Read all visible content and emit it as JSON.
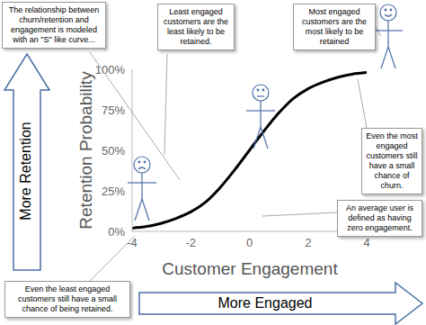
{
  "chart_data": {
    "type": "line",
    "x_label": "Customer Engagement",
    "y_label": "Retention Probability",
    "x": [
      -4,
      -3.5,
      -3,
      -2.5,
      -2,
      -1.5,
      -1,
      -0.5,
      0,
      0.5,
      1,
      1.5,
      2,
      2.5,
      3,
      3.5,
      4
    ],
    "values": [
      2,
      3,
      5,
      8,
      12,
      18,
      27,
      38,
      50,
      62,
      73,
      82,
      88,
      92,
      95,
      97,
      98
    ],
    "color": "#000000",
    "xlim": [
      -4,
      4
    ],
    "xticks": [
      -4,
      -2,
      0,
      2,
      4
    ],
    "ylim": [
      0,
      100
    ],
    "yticks": [
      {
        "value": 0,
        "label": "0%"
      },
      {
        "value": 25,
        "label": "25%"
      },
      {
        "value": 50,
        "label": "50%"
      },
      {
        "value": 75,
        "label": "75%"
      },
      {
        "value": 100,
        "label": "100%"
      }
    ],
    "grid": false,
    "annotations": [
      "The relationship between churn/retention and engagement is modeled with an \"S\" like curve...",
      "Least engaged customers are the least likely to be retained.",
      "Most engaged customers are the most likely to be retained",
      "Even the most engaged customers still have a small chance of churn.",
      "An average user is defined as having zero engagement.",
      "Even the least engaged customers still have a small chance of being retained.",
      "More Retention",
      "More Engaged"
    ]
  }
}
